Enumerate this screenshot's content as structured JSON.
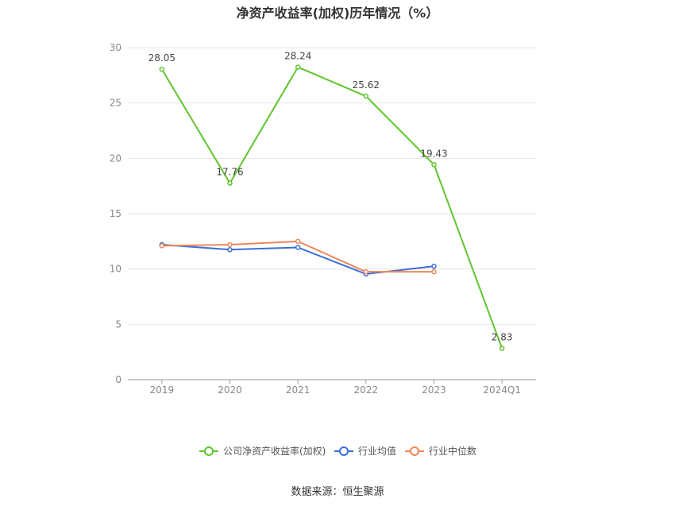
{
  "chart_data": {
    "type": "line",
    "title": "净资产收益率(加权)历年情况（%）",
    "xlabel": "",
    "ylabel": "",
    "categories": [
      "2019",
      "2020",
      "2021",
      "2022",
      "2023",
      "2024Q1"
    ],
    "ylim": [
      0,
      30
    ],
    "yticks": [
      0,
      5,
      10,
      15,
      20,
      25,
      30
    ],
    "grid": true,
    "legend_position": "bottom-center",
    "series": [
      {
        "name": "公司净资产收益率(加权)",
        "color": "#5fc52e",
        "values": [
          28.05,
          17.76,
          28.24,
          25.62,
          19.43,
          2.83
        ],
        "data_labels": [
          "28.05",
          "17.76",
          "28.24",
          "25.62",
          "19.43",
          "2.83"
        ]
      },
      {
        "name": "行业均值",
        "color": "#3b6fd8",
        "values": [
          12.2,
          11.75,
          11.95,
          9.55,
          10.25,
          null
        ]
      },
      {
        "name": "行业中位数",
        "color": "#f0865a",
        "values": [
          12.1,
          12.2,
          12.5,
          9.75,
          9.75,
          null
        ]
      }
    ]
  },
  "source": "数据来源：恒生聚源"
}
